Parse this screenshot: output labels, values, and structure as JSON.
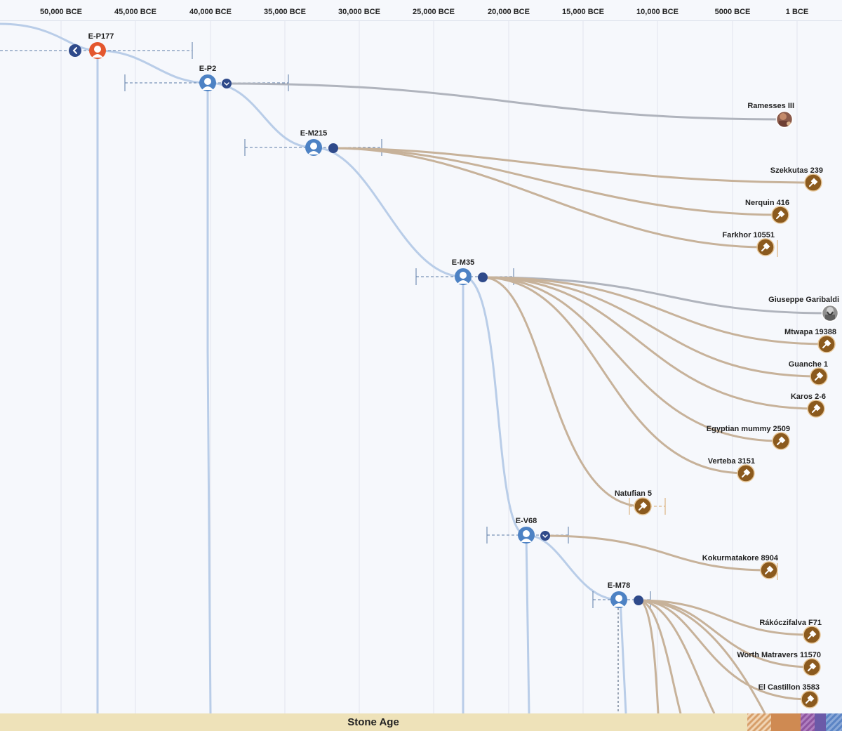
{
  "axis": {
    "ticks": [
      "50,000 BCE",
      "45,000 BCE",
      "40,000 BCE",
      "35,000 BCE",
      "30,000 BCE",
      "25,000 BCE",
      "20,000 BCE",
      "15,000 BCE",
      "10,000 BCE",
      "5000 BCE",
      "1 BCE"
    ]
  },
  "haplogroups": [
    {
      "id": "E-P177",
      "label": "E-P177",
      "color": "#e4572e",
      "collapse": "left"
    },
    {
      "id": "E-P2",
      "label": "E-P2",
      "color": "#4d82c4",
      "collapse": "down"
    },
    {
      "id": "E-M215",
      "label": "E-M215",
      "color": "#4d82c4",
      "collapse": "dot"
    },
    {
      "id": "E-M35",
      "label": "E-M35",
      "color": "#4d82c4",
      "collapse": "dot"
    },
    {
      "id": "E-V68",
      "label": "E-V68",
      "color": "#4d82c4",
      "collapse": "down"
    },
    {
      "id": "E-M78",
      "label": "E-M78",
      "color": "#4d82c4",
      "collapse": "dot"
    }
  ],
  "matches": [
    {
      "label": "Ramesses III",
      "type": "famous",
      "parent": "E-P2"
    },
    {
      "label": "Szekkutas 239",
      "type": "ancient",
      "parent": "E-M215"
    },
    {
      "label": "Nerquin 416",
      "type": "ancient",
      "parent": "E-M215"
    },
    {
      "label": "Farkhor 10551",
      "type": "ancient",
      "parent": "E-M215"
    },
    {
      "label": "Giuseppe Garibaldi",
      "type": "famous",
      "parent": "E-M35"
    },
    {
      "label": "Mtwapa 19388",
      "type": "ancient",
      "parent": "E-M35"
    },
    {
      "label": "Guanche 1",
      "type": "ancient",
      "parent": "E-M35"
    },
    {
      "label": "Karos 2-6",
      "type": "ancient",
      "parent": "E-M35"
    },
    {
      "label": "Egyptian mummy 2509",
      "type": "ancient",
      "parent": "E-M35"
    },
    {
      "label": "Verteba 3151",
      "type": "ancient",
      "parent": "E-M35"
    },
    {
      "label": "Natufian 5",
      "type": "ancient",
      "parent": "E-M35"
    },
    {
      "label": "Kokurmatakore 8904",
      "type": "ancient",
      "parent": "E-V68"
    },
    {
      "label": "Rákóczifalva F71",
      "type": "ancient",
      "parent": "E-M78"
    },
    {
      "label": "Worth Matravers 11570",
      "type": "ancient",
      "parent": "E-M78"
    },
    {
      "label": "El Castillon 3583",
      "type": "ancient",
      "parent": "E-M78"
    }
  ],
  "era_bar": {
    "label": "Stone Age",
    "colors": {
      "stone": "#eee2b9",
      "copper": "#d79f6a",
      "bronze": "#cf8a52",
      "iron": "#9b62a8",
      "later": "#6b5aa8",
      "modern": "#5b84c4"
    }
  },
  "colors": {
    "lineage": "#b9cde8",
    "ancient_branch": "#c7b29a",
    "famous_branch": "#b0b4bd",
    "ancient_icon": "#8b5a1e",
    "collapse_btn": "#2f4a8a",
    "grid": "#e1e5ee",
    "range_line": "#5b7aa6"
  }
}
